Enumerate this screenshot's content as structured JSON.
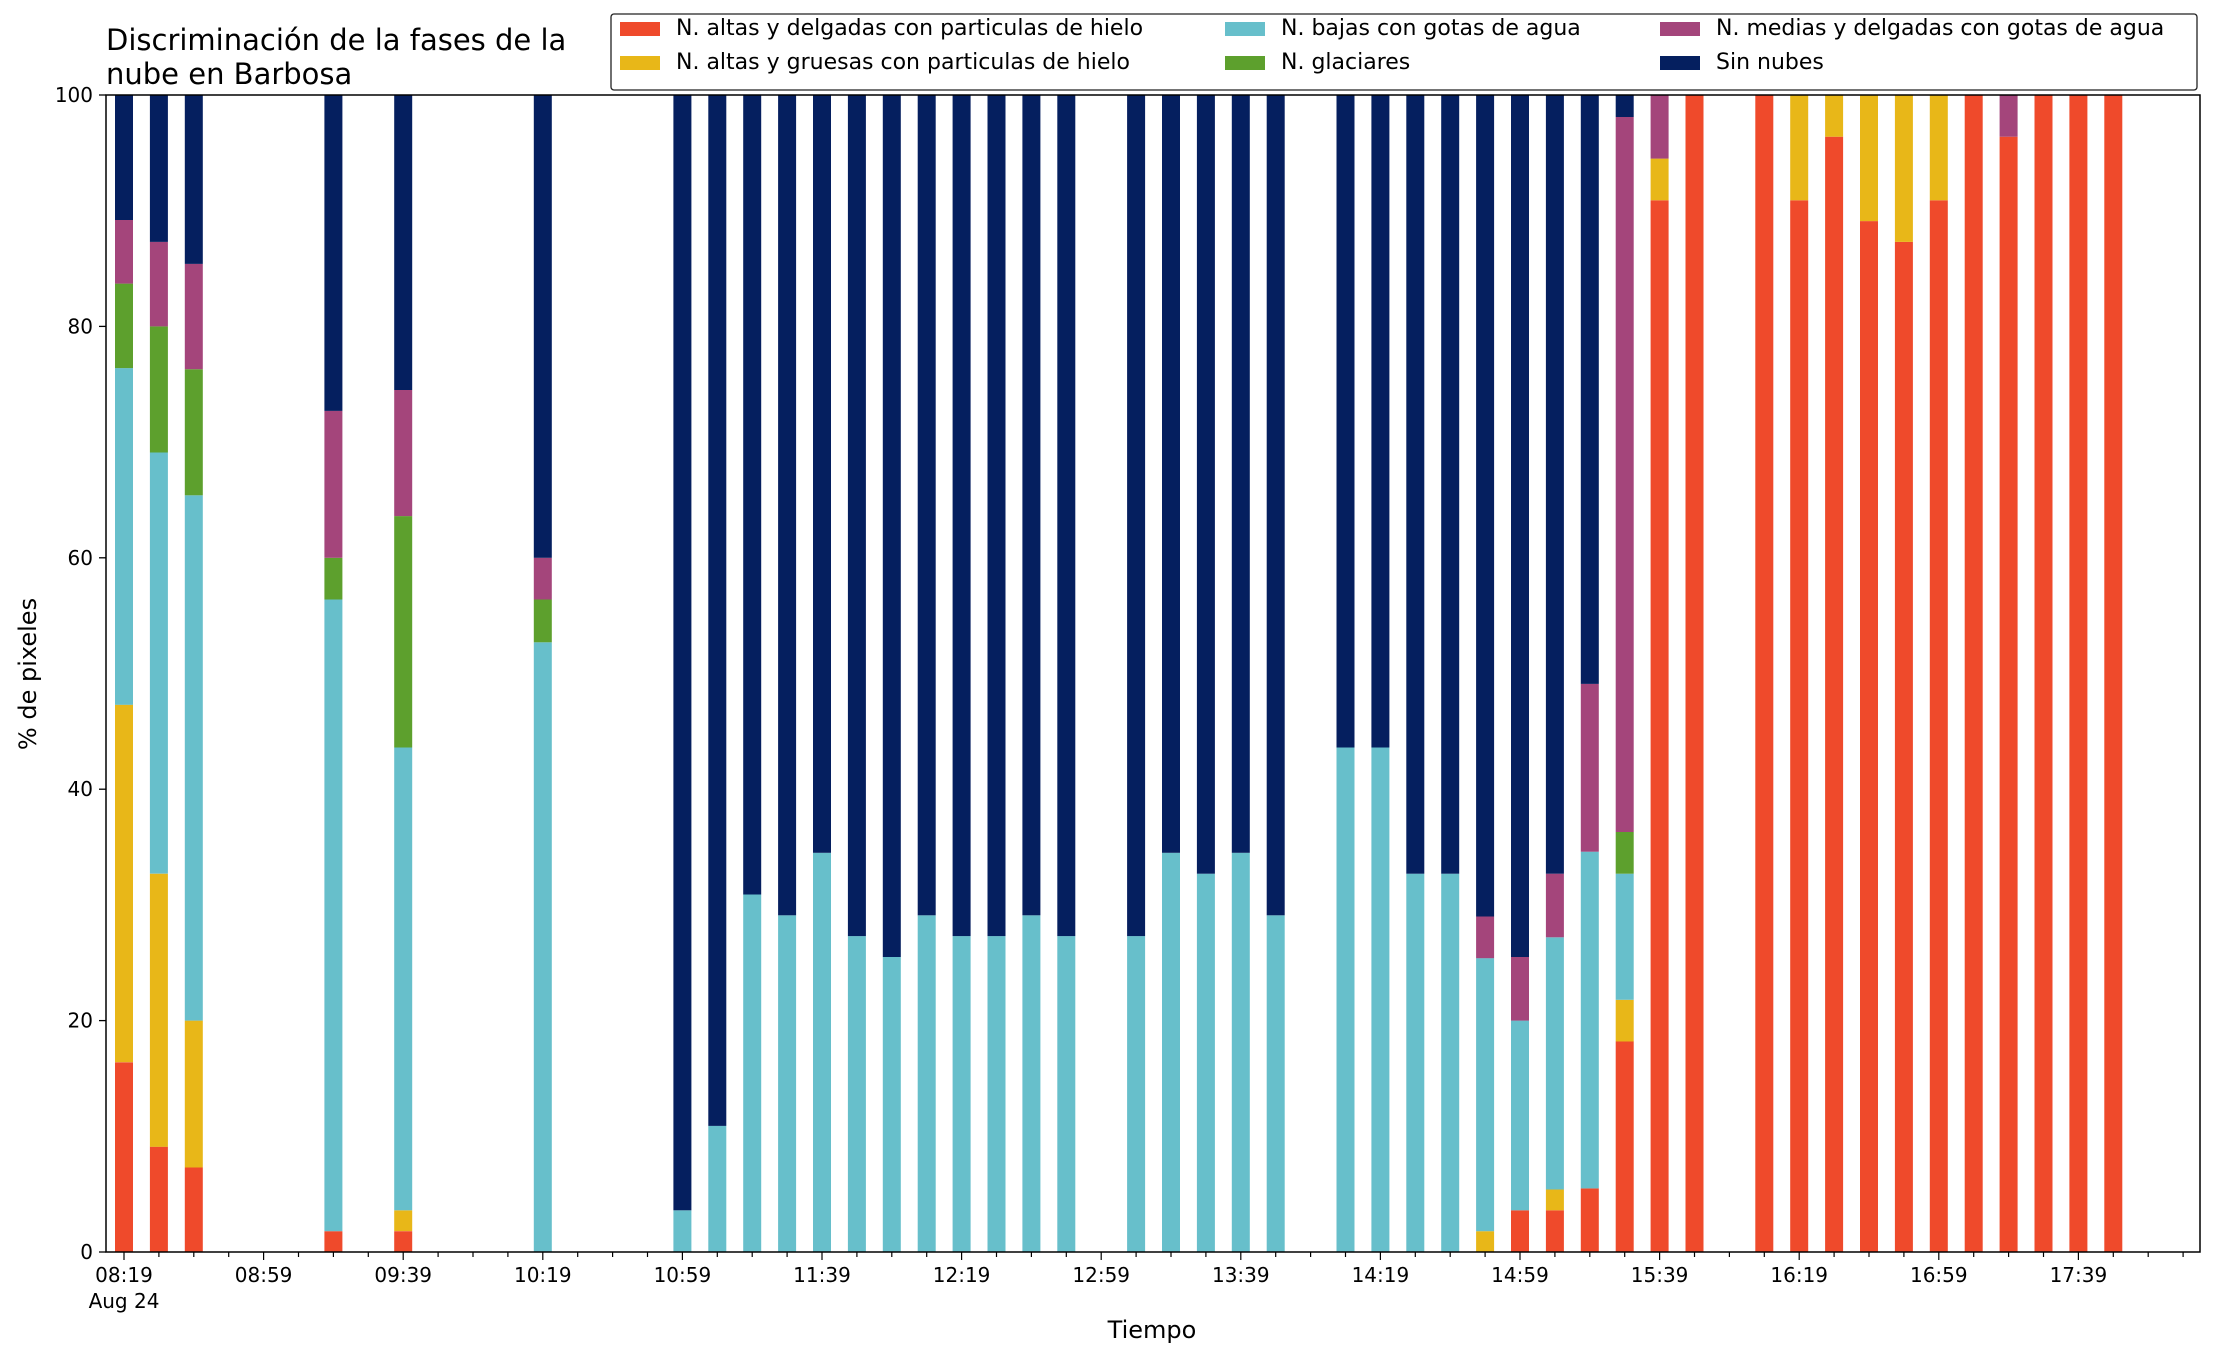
{
  "chart_data": {
    "type": "bar",
    "stacked": true,
    "title_lines": [
      "Discriminación de la fases de la",
      "nube en Barbosa"
    ],
    "xlabel": "Tiempo",
    "ylabel": "% de pixeles",
    "ylim": [
      0,
      100
    ],
    "yticks": [
      0,
      20,
      40,
      60,
      80,
      100
    ],
    "grid": false,
    "legend_position": "top-right",
    "x_start": "08:19",
    "x_step_minutes": 10,
    "xtick_labels": [
      "08:19",
      "08:59",
      "09:39",
      "10:19",
      "10:59",
      "11:39",
      "12:19",
      "12:59",
      "13:39",
      "14:19",
      "14:59",
      "15:39",
      "16:19",
      "16:59",
      "17:39"
    ],
    "x_date_label": "Aug 24",
    "categories": [
      "08:19",
      "08:29",
      "08:39",
      "08:49",
      "08:59",
      "09:09",
      "09:19",
      "09:29",
      "09:39",
      "09:49",
      "09:59",
      "10:09",
      "10:19",
      "10:29",
      "10:39",
      "10:49",
      "10:59",
      "11:09",
      "11:19",
      "11:29",
      "11:39",
      "11:49",
      "11:59",
      "12:09",
      "12:19",
      "12:29",
      "12:39",
      "12:49",
      "12:59",
      "13:09",
      "13:19",
      "13:29",
      "13:39",
      "13:49",
      "13:59",
      "14:09",
      "14:19",
      "14:29",
      "14:39",
      "14:49",
      "14:59",
      "15:09",
      "15:19",
      "15:29",
      "15:39",
      "15:49",
      "15:59",
      "16:09",
      "16:19",
      "16:29",
      "16:39",
      "16:49",
      "16:59",
      "17:09",
      "17:19",
      "17:29",
      "17:39",
      "17:49",
      "17:59"
    ],
    "series": [
      {
        "name": "N. altas y delgadas con particulas de hielo",
        "color": "#ef4a2b",
        "values": [
          16.4,
          9.1,
          7.3,
          null,
          null,
          null,
          1.8,
          null,
          1.8,
          null,
          null,
          null,
          0,
          null,
          null,
          null,
          0,
          0,
          0,
          0,
          0,
          0,
          0,
          0,
          0,
          0,
          0,
          0,
          null,
          0,
          0,
          0,
          0,
          0,
          null,
          0,
          0,
          0,
          0,
          0,
          3.6,
          3.6,
          5.5,
          18.2,
          90.9,
          100,
          null,
          100,
          90.9,
          96.4,
          89.1,
          87.3,
          90.9,
          100,
          96.4,
          100,
          100,
          100,
          null
        ]
      },
      {
        "name": "N. altas y gruesas con particulas de hielo",
        "color": "#e8b718",
        "values": [
          30.9,
          23.6,
          12.7,
          null,
          null,
          null,
          0,
          null,
          1.8,
          null,
          null,
          null,
          0,
          null,
          null,
          null,
          0,
          0,
          0,
          0,
          0,
          0,
          0,
          0,
          0,
          0,
          0,
          0,
          null,
          0,
          0,
          0,
          0,
          0,
          null,
          0,
          0,
          0,
          0,
          1.8,
          0,
          1.8,
          0,
          3.6,
          3.6,
          0,
          null,
          0,
          9.1,
          3.6,
          10.9,
          12.7,
          9.1,
          0,
          0,
          0,
          0,
          0,
          null
        ]
      },
      {
        "name": "N. bajas con gotas de agua",
        "color": "#67bfcb",
        "values": [
          29.1,
          36.4,
          45.4,
          null,
          null,
          null,
          54.6,
          null,
          40.0,
          null,
          null,
          null,
          52.7,
          null,
          null,
          null,
          3.6,
          10.9,
          30.9,
          29.1,
          34.5,
          27.3,
          25.5,
          29.1,
          27.3,
          27.3,
          29.1,
          27.3,
          null,
          27.3,
          34.5,
          32.7,
          34.5,
          29.1,
          null,
          43.6,
          43.6,
          32.7,
          32.7,
          23.6,
          16.4,
          21.8,
          29.1,
          10.9,
          0,
          0,
          null,
          0,
          0,
          0,
          0,
          0,
          0,
          0,
          0,
          0,
          0,
          0,
          null
        ]
      },
      {
        "name": "N. glaciares",
        "color": "#5da02d",
        "values": [
          7.3,
          10.9,
          10.9,
          null,
          null,
          null,
          3.6,
          null,
          20.0,
          null,
          null,
          null,
          3.7,
          null,
          null,
          null,
          0,
          0,
          0,
          0,
          0,
          0,
          0,
          0,
          0,
          0,
          0,
          0,
          null,
          0,
          0,
          0,
          0,
          0,
          null,
          0,
          0,
          0,
          0,
          0,
          0,
          0,
          0,
          3.6,
          0,
          0,
          null,
          0,
          0,
          0,
          0,
          0,
          0,
          0,
          0,
          0,
          0,
          0,
          null
        ]
      },
      {
        "name": "N. medias y delgadas con gotas de agua",
        "color": "#a4457b",
        "values": [
          5.5,
          7.3,
          9.1,
          null,
          null,
          null,
          12.7,
          null,
          10.9,
          null,
          null,
          null,
          3.6,
          null,
          null,
          null,
          0,
          0,
          0,
          0,
          0,
          0,
          0,
          0,
          0,
          0,
          0,
          0,
          null,
          0,
          0,
          0,
          0,
          0,
          null,
          0,
          0,
          0,
          0,
          3.6,
          5.5,
          5.5,
          14.5,
          61.8,
          5.5,
          0,
          null,
          0,
          0,
          0,
          0,
          0,
          0,
          0,
          3.6,
          0,
          0,
          0,
          null
        ]
      },
      {
        "name": "Sin nubes",
        "color": "#051f5f",
        "values": [
          10.8,
          12.7,
          14.6,
          null,
          null,
          null,
          27.3,
          null,
          25.5,
          null,
          null,
          null,
          40.0,
          null,
          null,
          null,
          96.4,
          89.1,
          69.1,
          70.9,
          65.5,
          72.7,
          74.5,
          70.9,
          72.7,
          72.7,
          70.9,
          72.7,
          null,
          72.7,
          65.5,
          67.3,
          65.5,
          70.9,
          null,
          56.4,
          56.4,
          67.3,
          67.3,
          71.0,
          74.5,
          67.3,
          50.9,
          1.9,
          0,
          0,
          null,
          0,
          0,
          0,
          0,
          0,
          0,
          0,
          0,
          0,
          0,
          0,
          null
        ]
      }
    ]
  }
}
